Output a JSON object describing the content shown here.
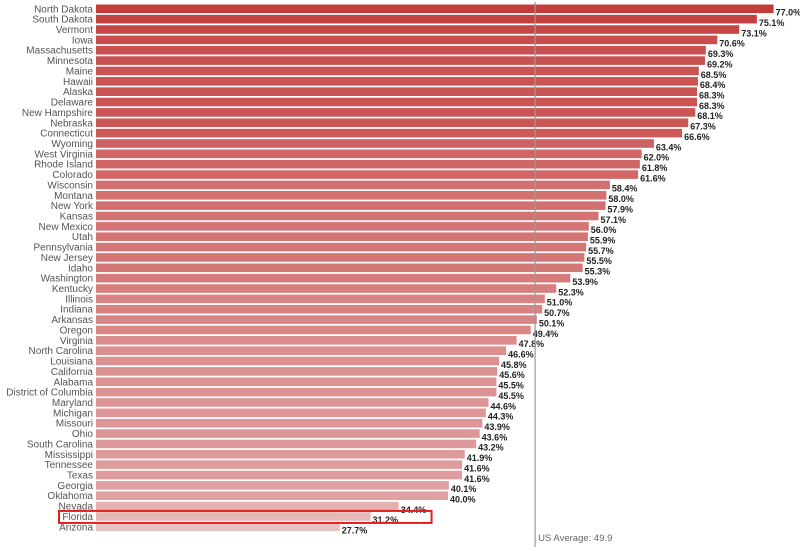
{
  "chart_data": {
    "type": "bar",
    "orientation": "horizontal",
    "categories": [
      "North Dakota",
      "South Dakota",
      "Vermont",
      "Iowa",
      "Massachusetts",
      "Minnesota",
      "Maine",
      "Hawaii",
      "Alaska",
      "Delaware",
      "New Hampshire",
      "Nebraska",
      "Connecticut",
      "Wyoming",
      "West Virginia",
      "Rhode Island",
      "Colorado",
      "Wisconsin",
      "Montana",
      "New York",
      "Kansas",
      "New Mexico",
      "Utah",
      "Pennsylvania",
      "New Jersey",
      "Idaho",
      "Washington",
      "Kentucky",
      "Illinois",
      "Indiana",
      "Arkansas",
      "Oregon",
      "Virginia",
      "North Carolina",
      "Louisiana",
      "California",
      "Alabama",
      "District of Columbia",
      "Maryland",
      "Michigan",
      "Missouri",
      "Ohio",
      "South Carolina",
      "Mississippi",
      "Tennessee",
      "Texas",
      "Georgia",
      "Oklahoma",
      "Nevada",
      "Florida",
      "Arizona"
    ],
    "values": [
      77.0,
      75.1,
      73.1,
      70.6,
      69.3,
      69.2,
      68.5,
      68.4,
      68.3,
      68.3,
      68.1,
      67.3,
      66.6,
      63.4,
      62.0,
      61.8,
      61.6,
      58.4,
      58.0,
      57.9,
      57.1,
      56.0,
      55.9,
      55.7,
      55.5,
      55.3,
      53.9,
      52.3,
      51.0,
      50.7,
      50.1,
      49.4,
      47.8,
      46.6,
      45.8,
      45.6,
      45.5,
      45.5,
      44.6,
      44.3,
      43.9,
      43.6,
      43.2,
      41.9,
      41.6,
      41.6,
      40.1,
      40.0,
      34.4,
      31.2,
      27.7
    ],
    "value_labels": [
      "77.0%",
      "75.1%",
      "73.1%",
      "70.6%",
      "69.3%",
      "69.2%",
      "68.5%",
      "68.4%",
      "68.3%",
      "68.3%",
      "68.1%",
      "67.3%",
      "66.6%",
      "63.4%",
      "62.0%",
      "61.8%",
      "61.6%",
      "58.4%",
      "58.0%",
      "57.9%",
      "57.1%",
      "56.0%",
      "55.9%",
      "55.7%",
      "55.5%",
      "55.3%",
      "53.9%",
      "52.3%",
      "51.0%",
      "50.7%",
      "50.1%",
      "49.4%",
      "47.8%",
      "46.6%",
      "45.8%",
      "45.6%",
      "45.5%",
      "45.5%",
      "44.6%",
      "44.3%",
      "43.9%",
      "43.6%",
      "43.2%",
      "41.9%",
      "41.6%",
      "41.6%",
      "40.1%",
      "40.0%",
      "34.4%",
      "31.2%",
      "27.7%"
    ],
    "value_unit": "%",
    "xlim": [
      0,
      80
    ],
    "grid": false,
    "legend": "none",
    "reference_line": {
      "value": 49.9,
      "label": "US Average: 49.9"
    },
    "highlighted_category": "Florida",
    "colors": {
      "bar_high": "#c43c3c",
      "bar_low": "#e9c2c2",
      "reference_line": "#999999",
      "highlight_box": "#e02020"
    }
  }
}
